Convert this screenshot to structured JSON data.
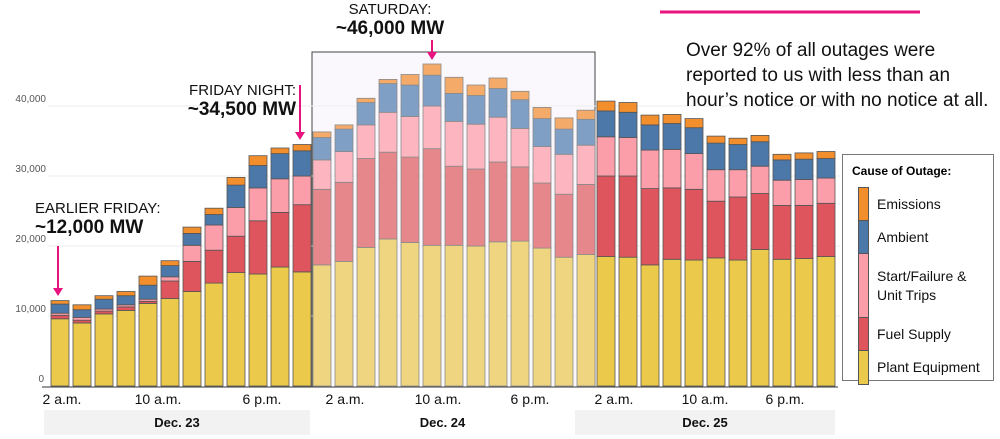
{
  "chart_data": {
    "type": "bar",
    "stacked": true,
    "ylim": [
      0,
      46000
    ],
    "yticks": [
      0,
      10000,
      20000,
      30000,
      40000
    ],
    "ytick_labels": [
      "0",
      "10,000",
      "20,000",
      "30,000",
      "40,000"
    ],
    "grid": true,
    "legend_title": "Cause of Outage:",
    "legend_placement": "right",
    "series_names": [
      "Plant Equipment",
      "Fuel Supply",
      "Start/Failure & Unit Trips",
      "Ambient",
      "Emissions"
    ],
    "legend_lines": [
      [
        "Emissions"
      ],
      [
        "Ambient"
      ],
      [
        "Start/Failure &",
        "Unit Trips"
      ],
      [
        "Fuel Supply"
      ],
      [
        "Plant Equipment"
      ]
    ],
    "colors": {
      "Plant Equipment": "#ebc94a",
      "Fuel Supply": "#df555d",
      "Start/Failure & Unit Trips": "#fc9eaa",
      "Ambient": "#4b77a9",
      "Emissions": "#f28e2b"
    },
    "highlight_colors": {
      "Plant Equipment": "#efd57f",
      "Fuel Supply": "#e6878c",
      "Start/Failure & Unit Trips": "#fdb6c0",
      "Ambient": "#809fc5",
      "Emissions": "#f4ab6a"
    },
    "days": [
      {
        "label": "Dec. 23",
        "ticks": [
          "2 a.m.",
          "10 a.m.",
          "6 p.m."
        ],
        "highlighted": false,
        "bars": [
          [
            9600,
            500,
            300,
            1300,
            500
          ],
          [
            9000,
            400,
            400,
            1100,
            700
          ],
          [
            10300,
            400,
            300,
            1400,
            500
          ],
          [
            10800,
            500,
            300,
            1300,
            600
          ],
          [
            11800,
            300,
            300,
            2000,
            1300
          ],
          [
            12500,
            2500,
            600,
            1600,
            700
          ],
          [
            13500,
            4300,
            2300,
            1700,
            900
          ],
          [
            14700,
            4700,
            3600,
            1500,
            900
          ],
          [
            16200,
            5200,
            4100,
            3200,
            1100
          ],
          [
            16000,
            7600,
            4700,
            3200,
            1400
          ],
          [
            17000,
            7800,
            4800,
            3600,
            800
          ],
          [
            16300,
            9600,
            4100,
            3600,
            900
          ]
        ]
      },
      {
        "label": "Dec. 24",
        "ticks": [
          "2 a.m.",
          "10 a.m.",
          "6 p.m."
        ],
        "highlighted": true,
        "bars": [
          [
            17300,
            10800,
            4200,
            3200,
            800
          ],
          [
            17800,
            11300,
            4400,
            3200,
            600
          ],
          [
            19800,
            12700,
            4800,
            3200,
            600
          ],
          [
            21000,
            12400,
            5700,
            4100,
            600
          ],
          [
            20500,
            12200,
            5800,
            4500,
            1500
          ],
          [
            20100,
            13800,
            6100,
            4400,
            1600
          ],
          [
            20100,
            11300,
            6400,
            4000,
            2300
          ],
          [
            20000,
            11000,
            6400,
            4100,
            1500
          ],
          [
            20600,
            11400,
            6400,
            4100,
            1500
          ],
          [
            20700,
            10600,
            5500,
            4100,
            1200
          ],
          [
            19700,
            9300,
            5200,
            4000,
            1600
          ],
          [
            18400,
            9000,
            5700,
            3600,
            1600
          ],
          [
            18800,
            10000,
            5600,
            3700,
            1300
          ]
        ]
      },
      {
        "label": "Dec. 25",
        "ticks": [
          "2 a.m.",
          "10 a.m.",
          "6 p.m."
        ],
        "highlighted": false,
        "bars": [
          [
            18500,
            11500,
            5600,
            3700,
            1400
          ],
          [
            18400,
            11600,
            5500,
            3600,
            1400
          ],
          [
            17300,
            10900,
            5500,
            3600,
            1400
          ],
          [
            18100,
            10200,
            5500,
            3700,
            1300
          ],
          [
            18000,
            10100,
            5100,
            3700,
            1300
          ],
          [
            18300,
            8100,
            4500,
            3800,
            1000
          ],
          [
            18000,
            9000,
            3900,
            3600,
            900
          ],
          [
            19500,
            8000,
            3900,
            3500,
            900
          ],
          [
            18100,
            7700,
            3600,
            2900,
            800
          ],
          [
            18200,
            7600,
            3700,
            2900,
            900
          ],
          [
            18500,
            7600,
            3600,
            2800,
            1000
          ]
        ]
      }
    ],
    "annotations": [
      {
        "label": "EARLIER FRIDAY:",
        "value": "~12,000 MW"
      },
      {
        "label": "FRIDAY NIGHT:",
        "value": "~34,500 MW"
      },
      {
        "label": "SATURDAY:",
        "value": "~46,000 MW"
      }
    ],
    "note": "Over 92% of all outages were reported to us with less than an hour’s notice or with no notice at all.",
    "accent_color": "#e8137f"
  }
}
